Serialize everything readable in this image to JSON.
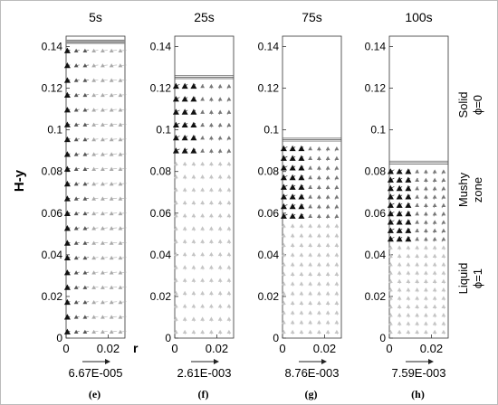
{
  "figure": {
    "y_axis_label": "H-y",
    "x_axis_label": "r",
    "y_ticks": [
      "0",
      "0.02",
      "0.04",
      "0.06",
      "0.08",
      "0.1",
      "0.12",
      "0.14"
    ],
    "x_ticks": [
      "0",
      "0.02"
    ],
    "panels": [
      {
        "time": "5s",
        "scale_label": "6.67E-005",
        "panel_label": "(e)",
        "interface_height": 0.143
      },
      {
        "time": "25s",
        "scale_label": "2.61E-003",
        "panel_label": "(f)",
        "interface_height": 0.126
      },
      {
        "time": "75s",
        "scale_label": "8.76E-003",
        "panel_label": "(g)",
        "interface_height": 0.096
      },
      {
        "time": "100s",
        "scale_label": "7.59E-003",
        "panel_label": "(h)",
        "interface_height": 0.085
      }
    ],
    "zone_labels": {
      "solid": [
        "Solid",
        "ϕ=0"
      ],
      "mushy": [
        "Mushy",
        "zone"
      ],
      "liquid": [
        "Liquid",
        "ϕ=1"
      ]
    }
  }
}
